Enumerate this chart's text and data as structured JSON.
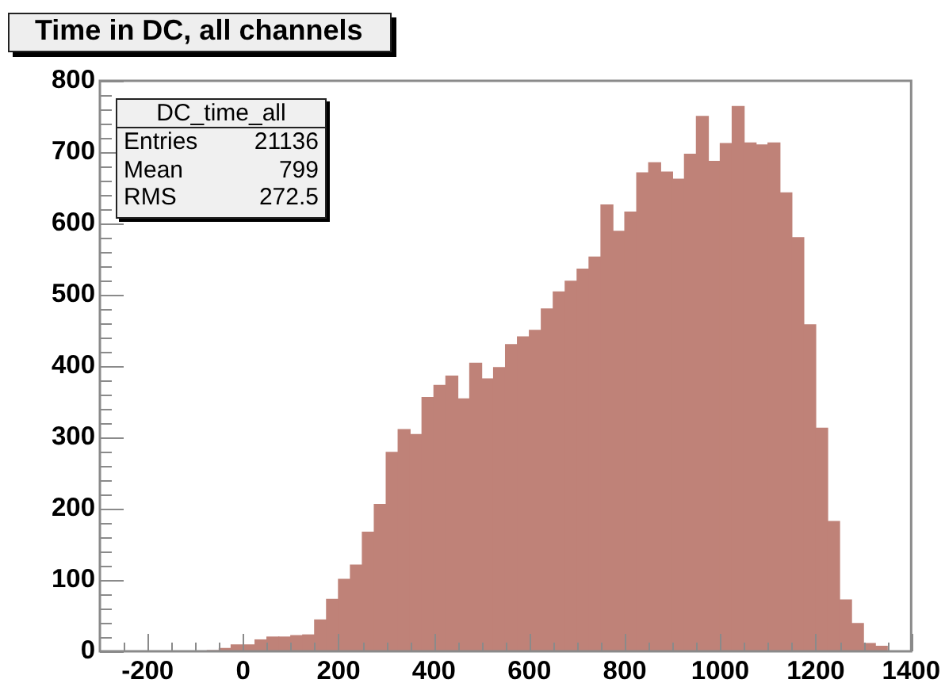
{
  "chart_data": {
    "type": "histogram",
    "title": "Time in DC, all channels",
    "annotations": [
      "DC_time_all",
      "Entries 21136",
      "Mean 799",
      "RMS 272.5"
    ],
    "bins": [
      -75,
      -50,
      -25,
      0,
      25,
      50,
      75,
      100,
      125,
      150,
      175,
      200,
      225,
      250,
      275,
      300,
      325,
      350,
      375,
      400,
      425,
      450,
      475,
      500,
      525,
      550,
      575,
      600,
      625,
      650,
      675,
      700,
      725,
      750,
      775,
      800,
      825,
      850,
      875,
      900,
      925,
      950,
      975,
      1000,
      1025,
      1050,
      1075,
      1100,
      1125,
      1150,
      1175,
      1200,
      1225,
      1250,
      1275,
      1300,
      1325,
      1350
    ],
    "values": [
      1,
      4,
      9,
      9,
      16,
      20,
      20,
      22,
      23,
      44,
      73,
      101,
      121,
      167,
      206,
      279,
      311,
      304,
      356,
      373,
      386,
      354,
      404,
      382,
      398,
      430,
      441,
      450,
      480,
      504,
      519,
      536,
      553,
      626,
      589,
      616,
      671,
      685,
      672,
      662,
      697,
      750,
      687,
      712,
      764,
      713,
      710,
      713,
      643,
      580,
      458,
      313,
      182,
      72,
      39,
      11,
      7
    ],
    "color": "#bf8278",
    "xlim": [
      -300,
      1400
    ],
    "ylim": [
      0,
      800
    ],
    "xticks": [
      {
        "value": -250,
        "label": null
      },
      -200,
      {
        "value": -150,
        "label": null
      },
      {
        "value": -100,
        "label": null
      },
      {
        "value": -50,
        "label": null
      },
      0,
      {
        "value": 50,
        "label": null
      },
      {
        "value": 100,
        "label": null
      },
      {
        "value": 150,
        "label": null
      },
      200,
      {
        "value": 250,
        "label": null
      },
      {
        "value": 300,
        "label": null
      },
      {
        "value": 350,
        "label": null
      },
      400,
      {
        "value": 450,
        "label": null
      },
      {
        "value": 500,
        "label": null
      },
      {
        "value": 550,
        "label": null
      },
      600,
      {
        "value": 650,
        "label": null
      },
      {
        "value": 700,
        "label": null
      },
      {
        "value": 750,
        "label": null
      },
      800,
      {
        "value": 850,
        "label": null
      },
      {
        "value": 900,
        "label": null
      },
      {
        "value": 950,
        "label": null
      },
      1000,
      {
        "value": 1050,
        "label": null
      },
      {
        "value": 1100,
        "label": null
      },
      {
        "value": 1150,
        "label": null
      },
      1200,
      {
        "value": 1250,
        "label": null
      },
      {
        "value": 1300,
        "label": null
      },
      {
        "value": 1350,
        "label": null
      },
      1400
    ],
    "yticks": [
      0,
      {
        "value": 20,
        "label": null
      },
      {
        "value": 40,
        "label": null
      },
      {
        "value": 60,
        "label": null
      },
      {
        "value": 80,
        "label": null
      },
      100,
      {
        "value": 120,
        "label": null
      },
      {
        "value": 140,
        "label": null
      },
      {
        "value": 160,
        "label": null
      },
      {
        "value": 180,
        "label": null
      },
      200,
      {
        "value": 220,
        "label": null
      },
      {
        "value": 240,
        "label": null
      },
      {
        "value": 260,
        "label": null
      },
      {
        "value": 280,
        "label": null
      },
      300,
      {
        "value": 320,
        "label": null
      },
      {
        "value": 340,
        "label": null
      },
      {
        "value": 360,
        "label": null
      },
      {
        "value": 380,
        "label": null
      },
      400,
      {
        "value": 420,
        "label": null
      },
      {
        "value": 440,
        "label": null
      },
      {
        "value": 460,
        "label": null
      },
      {
        "value": 480,
        "label": null
      },
      500,
      {
        "value": 520,
        "label": null
      },
      {
        "value": 540,
        "label": null
      },
      {
        "value": 560,
        "label": null
      },
      {
        "value": 580,
        "label": null
      },
      600,
      {
        "value": 620,
        "label": null
      },
      {
        "value": 640,
        "label": null
      },
      {
        "value": 660,
        "label": null
      },
      {
        "value": 680,
        "label": null
      },
      700,
      {
        "value": 720,
        "label": null
      },
      {
        "value": 740,
        "label": null
      },
      {
        "value": 760,
        "label": null
      },
      {
        "value": 780,
        "label": null
      },
      800
    ]
  }
}
